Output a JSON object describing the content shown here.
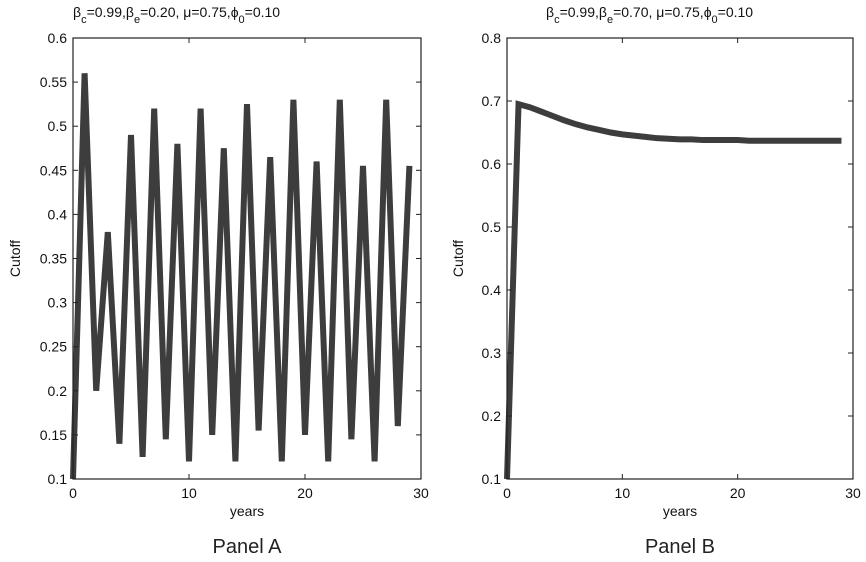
{
  "chart_data": [
    {
      "type": "line",
      "panel_label": "Panel A",
      "title": {
        "parts": [
          {
            "t": "β"
          },
          {
            "t": "c",
            "sub": true
          },
          {
            "t": "=0.99,"
          },
          {
            "t": "β"
          },
          {
            "t": "e",
            "sub": true
          },
          {
            "t": "=0.20, "
          },
          {
            "t": "μ"
          },
          {
            "t": "=0.75,"
          },
          {
            "t": "ϕ"
          },
          {
            "t": "0",
            "sub": true
          },
          {
            "t": "=0.10"
          }
        ]
      },
      "xlabel": "years",
      "ylabel": "Cutoff",
      "xlim": [
        0,
        30
      ],
      "ylim": [
        0.1,
        0.6
      ],
      "xticks": [
        "0",
        "10",
        "20",
        "30"
      ],
      "yticks": [
        "0.1",
        "0.15",
        "0.2",
        "0.25",
        "0.3",
        "0.35",
        "0.4",
        "0.45",
        "0.5",
        "0.55",
        "0.6"
      ],
      "grid": false,
      "series": [
        {
          "color": "#3d3d3d",
          "x": [
            0,
            1,
            2,
            3,
            4,
            5,
            6,
            7,
            8,
            9,
            10,
            11,
            12,
            13,
            14,
            15,
            16,
            17,
            18,
            19,
            20,
            21,
            22,
            23,
            24,
            25,
            26,
            27,
            28,
            29
          ],
          "y": [
            0.1,
            0.56,
            0.2,
            0.38,
            0.14,
            0.49,
            0.125,
            0.52,
            0.145,
            0.48,
            0.12,
            0.52,
            0.15,
            0.475,
            0.12,
            0.525,
            0.155,
            0.465,
            0.12,
            0.53,
            0.15,
            0.46,
            0.12,
            0.53,
            0.145,
            0.455,
            0.12,
            0.53,
            0.16,
            0.455
          ]
        }
      ]
    },
    {
      "type": "line",
      "panel_label": "Panel B",
      "title": {
        "parts": [
          {
            "t": "β"
          },
          {
            "t": "c",
            "sub": true
          },
          {
            "t": "=0.99,"
          },
          {
            "t": "β"
          },
          {
            "t": "e",
            "sub": true
          },
          {
            "t": "=0.70, "
          },
          {
            "t": "μ"
          },
          {
            "t": "=0.75,"
          },
          {
            "t": "ϕ"
          },
          {
            "t": "0",
            "sub": true
          },
          {
            "t": "=0.10"
          }
        ]
      },
      "xlabel": "years",
      "ylabel": "Cutoff",
      "xlim": [
        0,
        30
      ],
      "ylim": [
        0.1,
        0.8
      ],
      "xticks": [
        "0",
        "10",
        "20",
        "30"
      ],
      "yticks": [
        "0.1",
        "0.2",
        "0.3",
        "0.4",
        "0.5",
        "0.6",
        "0.7",
        "0.8"
      ],
      "grid": false,
      "series": [
        {
          "color": "#3d3d3d",
          "x": [
            0,
            1,
            2,
            3,
            4,
            5,
            6,
            7,
            8,
            9,
            10,
            11,
            12,
            13,
            14,
            15,
            16,
            17,
            18,
            19,
            20,
            21,
            22,
            23,
            24,
            25,
            26,
            27,
            28,
            29
          ],
          "y": [
            0.1,
            0.695,
            0.69,
            0.683,
            0.676,
            0.669,
            0.663,
            0.658,
            0.654,
            0.65,
            0.647,
            0.645,
            0.643,
            0.641,
            0.64,
            0.639,
            0.639,
            0.638,
            0.638,
            0.638,
            0.638,
            0.637,
            0.637,
            0.637,
            0.637,
            0.637,
            0.637,
            0.637,
            0.637,
            0.637
          ]
        }
      ]
    }
  ]
}
